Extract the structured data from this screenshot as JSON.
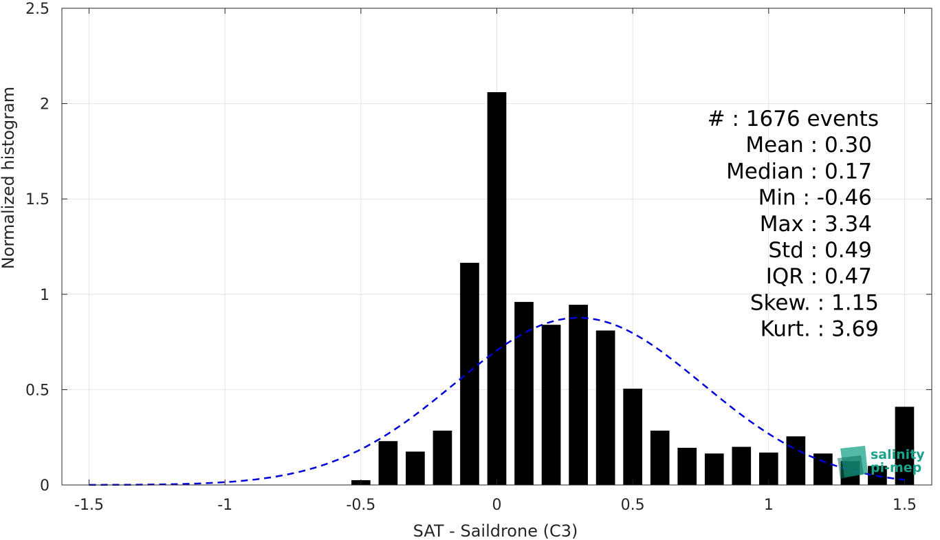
{
  "chart_data": {
    "type": "bar",
    "xlabel": "SAT - Saildrone (C3)",
    "ylabel": "Normalized histogram",
    "xlim": [
      -1.6,
      1.6
    ],
    "ylim": [
      0,
      2.5
    ],
    "grid": true,
    "x_ticks": [
      "-1.5",
      "-1",
      "-0.5",
      "0",
      "0.5",
      "1",
      "1.5"
    ],
    "x_tick_values": [
      -1.5,
      -1,
      -0.5,
      0,
      0.5,
      1,
      1.5
    ],
    "y_ticks": [
      "0",
      "0.5",
      "1",
      "1.5",
      "2",
      "2.5"
    ],
    "y_tick_values": [
      0,
      0.5,
      1,
      1.5,
      2,
      2.5
    ],
    "bar_color": "#000000",
    "bin_width": 0.1,
    "bars": {
      "x": [
        -0.5,
        -0.4,
        -0.3,
        -0.2,
        -0.1,
        0.0,
        0.1,
        0.2,
        0.3,
        0.4,
        0.5,
        0.6,
        0.7,
        0.8,
        0.9,
        1.0,
        1.1,
        1.2,
        1.3,
        1.4,
        1.5
      ],
      "values": [
        0.025,
        0.23,
        0.175,
        0.285,
        1.165,
        2.06,
        0.96,
        0.84,
        0.945,
        0.81,
        0.505,
        0.285,
        0.195,
        0.165,
        0.2,
        0.17,
        0.255,
        0.165,
        0.125,
        0.1,
        0.41
      ]
    },
    "fit_curve": {
      "type": "normal",
      "mean": 0.3,
      "std": 0.455,
      "color": "#0000dd",
      "style": "dashed",
      "x_range": [
        -1.5,
        1.5
      ]
    },
    "stats": [
      {
        "label": "#  : 1676 events"
      },
      {
        "label": "Mean : 0.30"
      },
      {
        "label": "Median : 0.17"
      },
      {
        "label": "Min : -0.46"
      },
      {
        "label": "Max : 3.34"
      },
      {
        "label": "Std : 0.49"
      },
      {
        "label": "IQR : 0.47"
      },
      {
        "label": "Skew. : 1.15"
      },
      {
        "label": "Kurt. : 3.69"
      }
    ]
  },
  "logo": {
    "line1": "salinity",
    "line2": "pi-mep",
    "color": "#1aa38a"
  }
}
